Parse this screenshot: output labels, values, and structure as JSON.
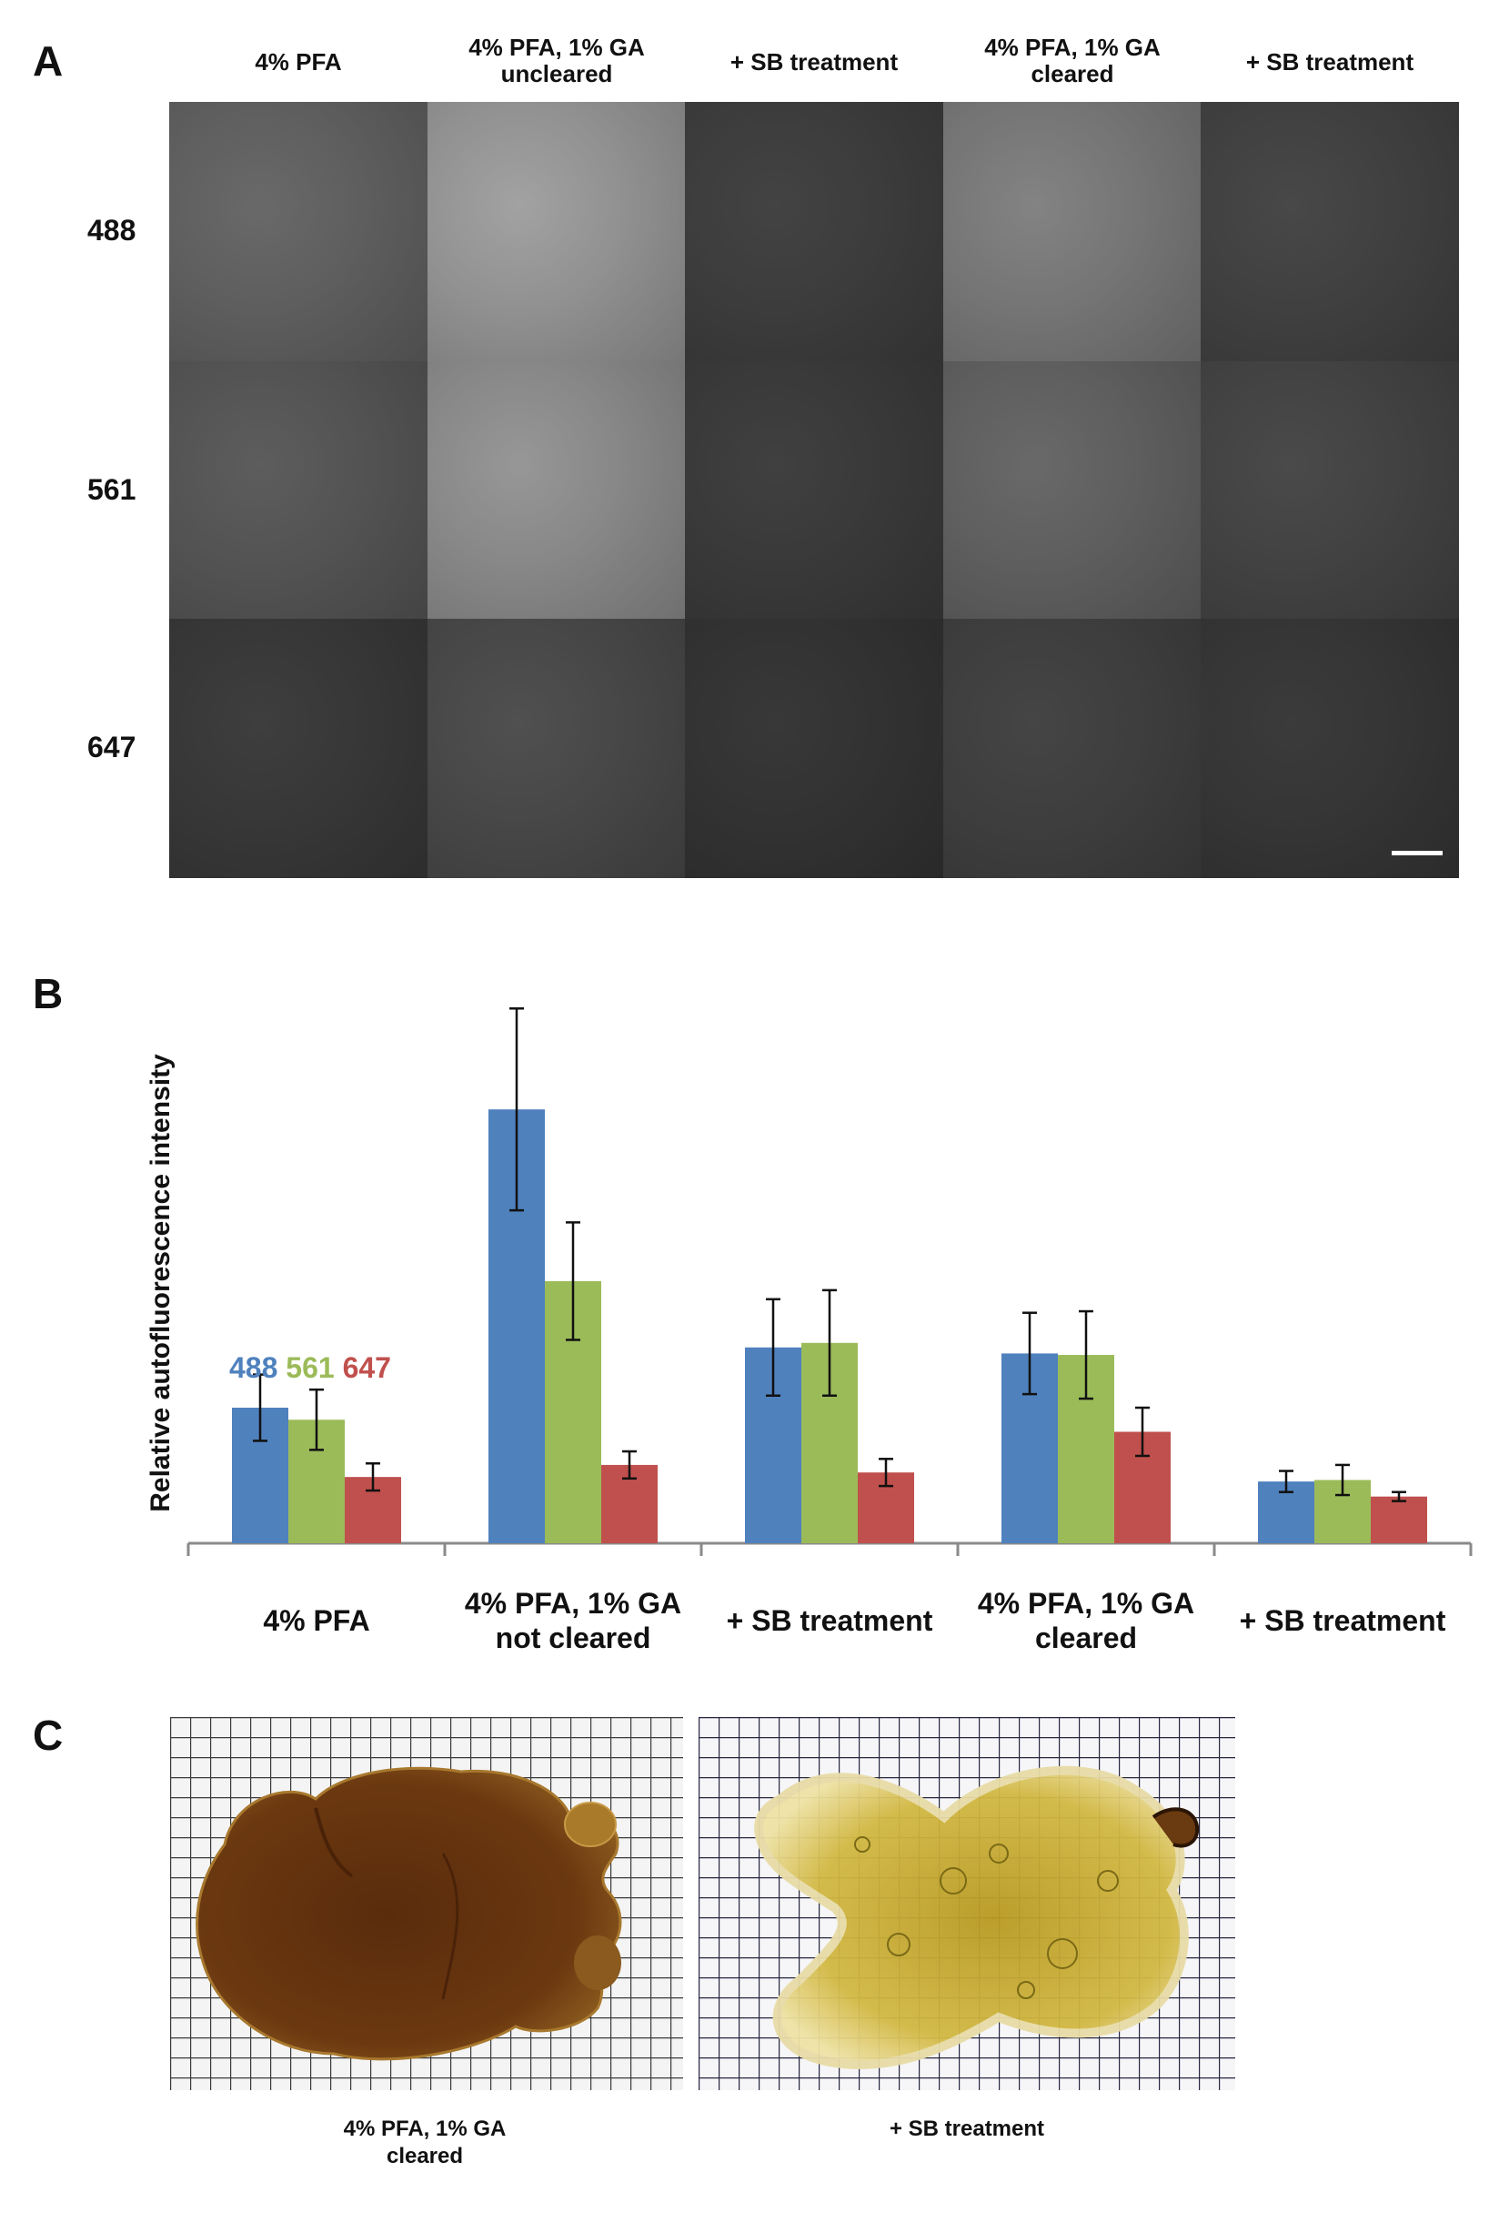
{
  "panels": {
    "a": {
      "letter": "A",
      "columns": [
        {
          "line1": "4% PFA",
          "line2": ""
        },
        {
          "line1": "4% PFA, 1% GA",
          "line2": "uncleared"
        },
        {
          "line1": "+ SB treatment",
          "line2": ""
        },
        {
          "line1": "4% PFA, 1% GA",
          "line2": "cleared"
        },
        {
          "line1": "+ SB treatment",
          "line2": ""
        }
      ],
      "rows": [
        "488",
        "561",
        "647"
      ],
      "tile_brightness": [
        [
          0.3,
          0.52,
          0.15,
          0.4,
          0.17
        ],
        [
          0.25,
          0.48,
          0.14,
          0.3,
          0.18
        ],
        [
          0.13,
          0.2,
          0.11,
          0.16,
          0.12
        ]
      ]
    },
    "b": {
      "letter": "B"
    },
    "c": {
      "letter": "C",
      "labels": [
        {
          "line1": "4% PFA, 1% GA",
          "line2": "cleared"
        },
        {
          "line1": "+ SB treatment",
          "line2": ""
        }
      ]
    }
  },
  "chart_data": {
    "type": "bar",
    "ylabel": "Relative autofluorescence intensity",
    "categories": [
      {
        "line1": "4% PFA",
        "line2": ""
      },
      {
        "line1": "4% PFA, 1% GA",
        "line2": "not cleared"
      },
      {
        "line1": "+ SB treatment",
        "line2": ""
      },
      {
        "line1": "4% PFA, 1% GA",
        "line2": "cleared"
      },
      {
        "line1": "+ SB treatment",
        "line2": ""
      }
    ],
    "series": [
      {
        "name": "488",
        "color": "#4f81bd",
        "values": [
          0.9,
          2.88,
          1.3,
          1.26,
          0.41
        ],
        "errors": [
          0.22,
          0.67,
          0.32,
          0.27,
          0.07
        ]
      },
      {
        "name": "561",
        "color": "#9bbb59",
        "values": [
          0.82,
          1.74,
          1.33,
          1.25,
          0.42
        ],
        "errors": [
          0.2,
          0.39,
          0.35,
          0.29,
          0.1
        ]
      },
      {
        "name": "647",
        "color": "#c0504d",
        "values": [
          0.44,
          0.52,
          0.47,
          0.74,
          0.31
        ],
        "errors": [
          0.09,
          0.09,
          0.09,
          0.16,
          0.03
        ]
      }
    ],
    "ylim": [
      0,
      3.6
    ],
    "grid": false,
    "legend_position": "top-left"
  }
}
